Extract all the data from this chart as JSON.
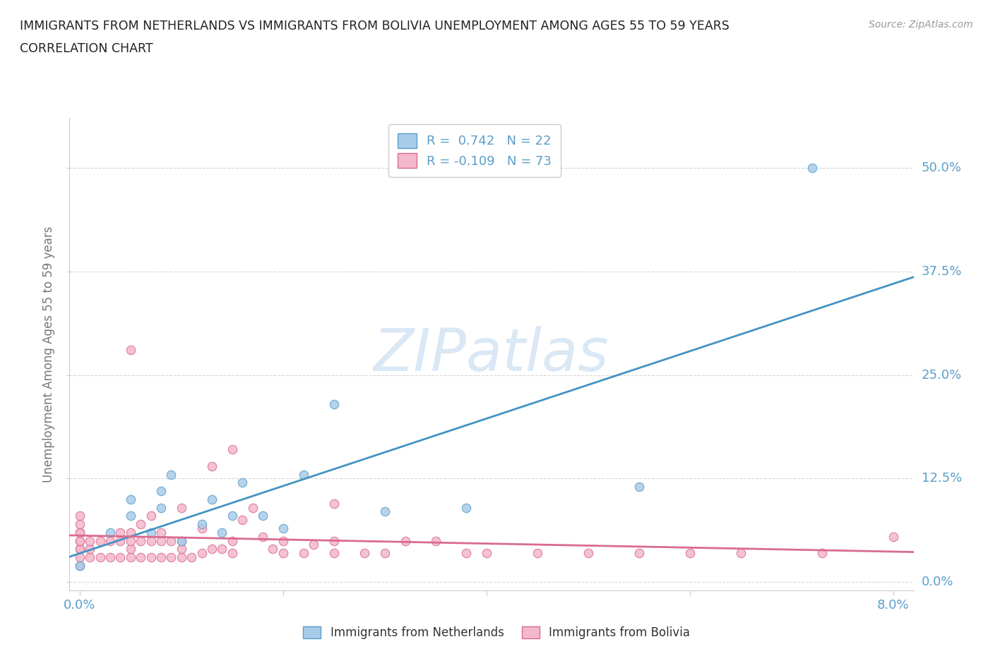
{
  "title_line1": "IMMIGRANTS FROM NETHERLANDS VS IMMIGRANTS FROM BOLIVIA UNEMPLOYMENT AMONG AGES 55 TO 59 YEARS",
  "title_line2": "CORRELATION CHART",
  "source_text": "Source: ZipAtlas.com",
  "ylabel": "Unemployment Among Ages 55 to 59 years",
  "xlim": [
    -0.001,
    0.082
  ],
  "ylim": [
    -0.01,
    0.56
  ],
  "yticks": [
    0.0,
    0.125,
    0.25,
    0.375,
    0.5
  ],
  "ytick_labels": [
    "0.0%",
    "12.5%",
    "25.0%",
    "37.5%",
    "50.0%"
  ],
  "xtick_positions": [
    0.0,
    0.02,
    0.04,
    0.06,
    0.08
  ],
  "xtick_labels_visible": [
    "0.0%",
    "",
    "",
    "",
    "8.0%"
  ],
  "netherlands_R": 0.742,
  "netherlands_N": 22,
  "bolivia_R": -0.109,
  "bolivia_N": 73,
  "netherlands_color": "#a8cce8",
  "netherlands_edge_color": "#5b9ec9",
  "netherlands_line_color": "#4393c3",
  "bolivia_color": "#f4b8cc",
  "bolivia_edge_color": "#d96b8e",
  "bolivia_line_color": "#d96b8e",
  "tick_label_color": "#5b9ec9",
  "watermark_color": "#dae8f5",
  "background_color": "#ffffff",
  "grid_color": "#cccccc",
  "netherlands_scatter_x": [
    0.0,
    0.003,
    0.005,
    0.005,
    0.007,
    0.008,
    0.008,
    0.009,
    0.01,
    0.012,
    0.013,
    0.014,
    0.015,
    0.016,
    0.018,
    0.02,
    0.022,
    0.025,
    0.03,
    0.038,
    0.055,
    0.072
  ],
  "netherlands_scatter_y": [
    0.02,
    0.06,
    0.08,
    0.1,
    0.06,
    0.09,
    0.11,
    0.13,
    0.05,
    0.07,
    0.1,
    0.06,
    0.08,
    0.12,
    0.08,
    0.065,
    0.13,
    0.215,
    0.085,
    0.09,
    0.115,
    0.5
  ],
  "bolivia_scatter_x": [
    0.0,
    0.0,
    0.0,
    0.0,
    0.0,
    0.0,
    0.0,
    0.0,
    0.0,
    0.0,
    0.001,
    0.001,
    0.001,
    0.002,
    0.002,
    0.003,
    0.003,
    0.004,
    0.004,
    0.004,
    0.005,
    0.005,
    0.005,
    0.005,
    0.005,
    0.006,
    0.006,
    0.006,
    0.007,
    0.007,
    0.007,
    0.008,
    0.008,
    0.008,
    0.009,
    0.009,
    0.01,
    0.01,
    0.01,
    0.01,
    0.011,
    0.012,
    0.012,
    0.013,
    0.013,
    0.014,
    0.015,
    0.015,
    0.015,
    0.016,
    0.017,
    0.018,
    0.019,
    0.02,
    0.02,
    0.022,
    0.023,
    0.025,
    0.025,
    0.025,
    0.028,
    0.03,
    0.032,
    0.035,
    0.038,
    0.04,
    0.045,
    0.05,
    0.055,
    0.06,
    0.065,
    0.073,
    0.08
  ],
  "bolivia_scatter_y": [
    0.02,
    0.03,
    0.04,
    0.04,
    0.05,
    0.05,
    0.06,
    0.06,
    0.07,
    0.08,
    0.03,
    0.04,
    0.05,
    0.03,
    0.05,
    0.03,
    0.05,
    0.03,
    0.05,
    0.06,
    0.03,
    0.04,
    0.05,
    0.06,
    0.28,
    0.03,
    0.05,
    0.07,
    0.03,
    0.05,
    0.08,
    0.03,
    0.05,
    0.06,
    0.03,
    0.05,
    0.03,
    0.04,
    0.05,
    0.09,
    0.03,
    0.035,
    0.065,
    0.04,
    0.14,
    0.04,
    0.035,
    0.05,
    0.16,
    0.075,
    0.09,
    0.055,
    0.04,
    0.035,
    0.05,
    0.035,
    0.045,
    0.035,
    0.05,
    0.095,
    0.035,
    0.035,
    0.05,
    0.05,
    0.035,
    0.035,
    0.035,
    0.035,
    0.035,
    0.035,
    0.035,
    0.035,
    0.055
  ]
}
